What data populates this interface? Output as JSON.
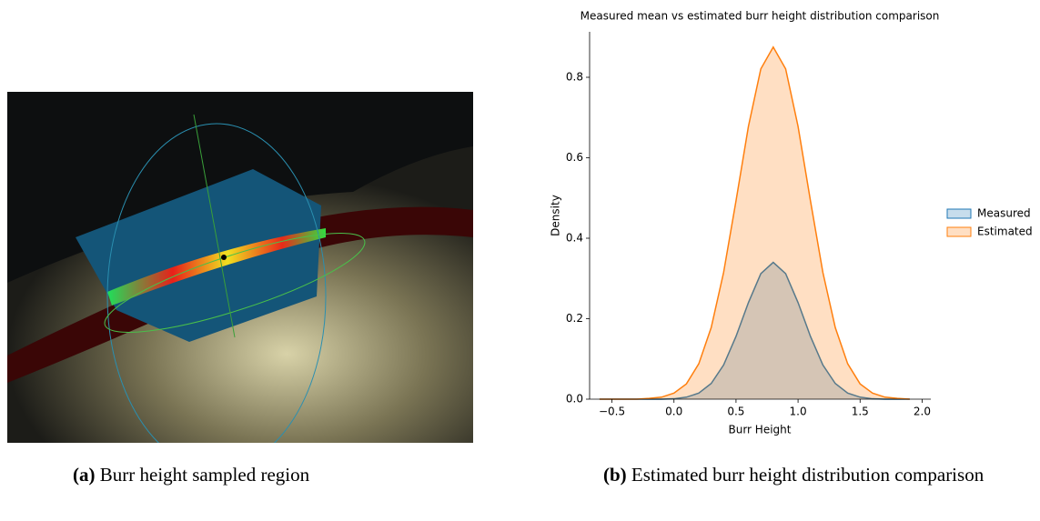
{
  "captions": [
    {
      "label": "(a)",
      "text": "Burr height sampled region"
    },
    {
      "label": "(b)",
      "text": "Estimated burr height distribution comparison"
    }
  ],
  "chart_data": {
    "type": "kde",
    "title": "Measured mean vs estimated burr height distribution comparison",
    "x_label": "Burr Height",
    "y_label": "Density",
    "x": [
      -0.6,
      -0.5,
      -0.4,
      -0.3,
      -0.2,
      -0.1,
      0.0,
      0.1,
      0.2,
      0.3,
      0.4,
      0.5,
      0.6,
      0.7,
      0.8,
      0.9,
      1.0,
      1.1,
      1.2,
      1.3,
      1.4,
      1.5,
      1.6,
      1.7,
      1.8,
      1.9
    ],
    "series": [
      {
        "name": "Measured",
        "color": "#1f77b4",
        "values": [
          0,
          0,
          0,
          0,
          0,
          0,
          0.001,
          0.005,
          0.015,
          0.039,
          0.085,
          0.156,
          0.24,
          0.312,
          0.34,
          0.312,
          0.24,
          0.156,
          0.085,
          0.039,
          0.015,
          0.005,
          0.001,
          0,
          0,
          0
        ]
      },
      {
        "name": "Estimated",
        "color": "#ff7f0e",
        "values": [
          0,
          0,
          0,
          0,
          0.002,
          0.005,
          0.015,
          0.038,
          0.088,
          0.178,
          0.315,
          0.493,
          0.678,
          0.821,
          0.875,
          0.821,
          0.678,
          0.493,
          0.315,
          0.178,
          0.088,
          0.038,
          0.015,
          0.005,
          0.002,
          0
        ]
      }
    ],
    "xlim": [
      -0.68,
      2.07
    ],
    "ylim": [
      0,
      0.913
    ],
    "xticks": [
      {
        "value": -0.5,
        "label": "−0.5"
      },
      {
        "value": 0,
        "label": "0.0"
      },
      {
        "value": 0.5,
        "label": "0.5"
      },
      {
        "value": 1,
        "label": "1.0"
      },
      {
        "value": 1.5,
        "label": "1.5"
      },
      {
        "value": 2,
        "label": "2.0"
      }
    ],
    "yticks": [
      {
        "value": 0,
        "label": "0.0"
      },
      {
        "value": 0.2,
        "label": "0.2"
      },
      {
        "value": 0.4,
        "label": "0.4"
      },
      {
        "value": 0.6,
        "label": "0.6"
      },
      {
        "value": 0.8,
        "label": "0.8"
      }
    ],
    "fill_opacity": 0.25,
    "legend": "right"
  }
}
